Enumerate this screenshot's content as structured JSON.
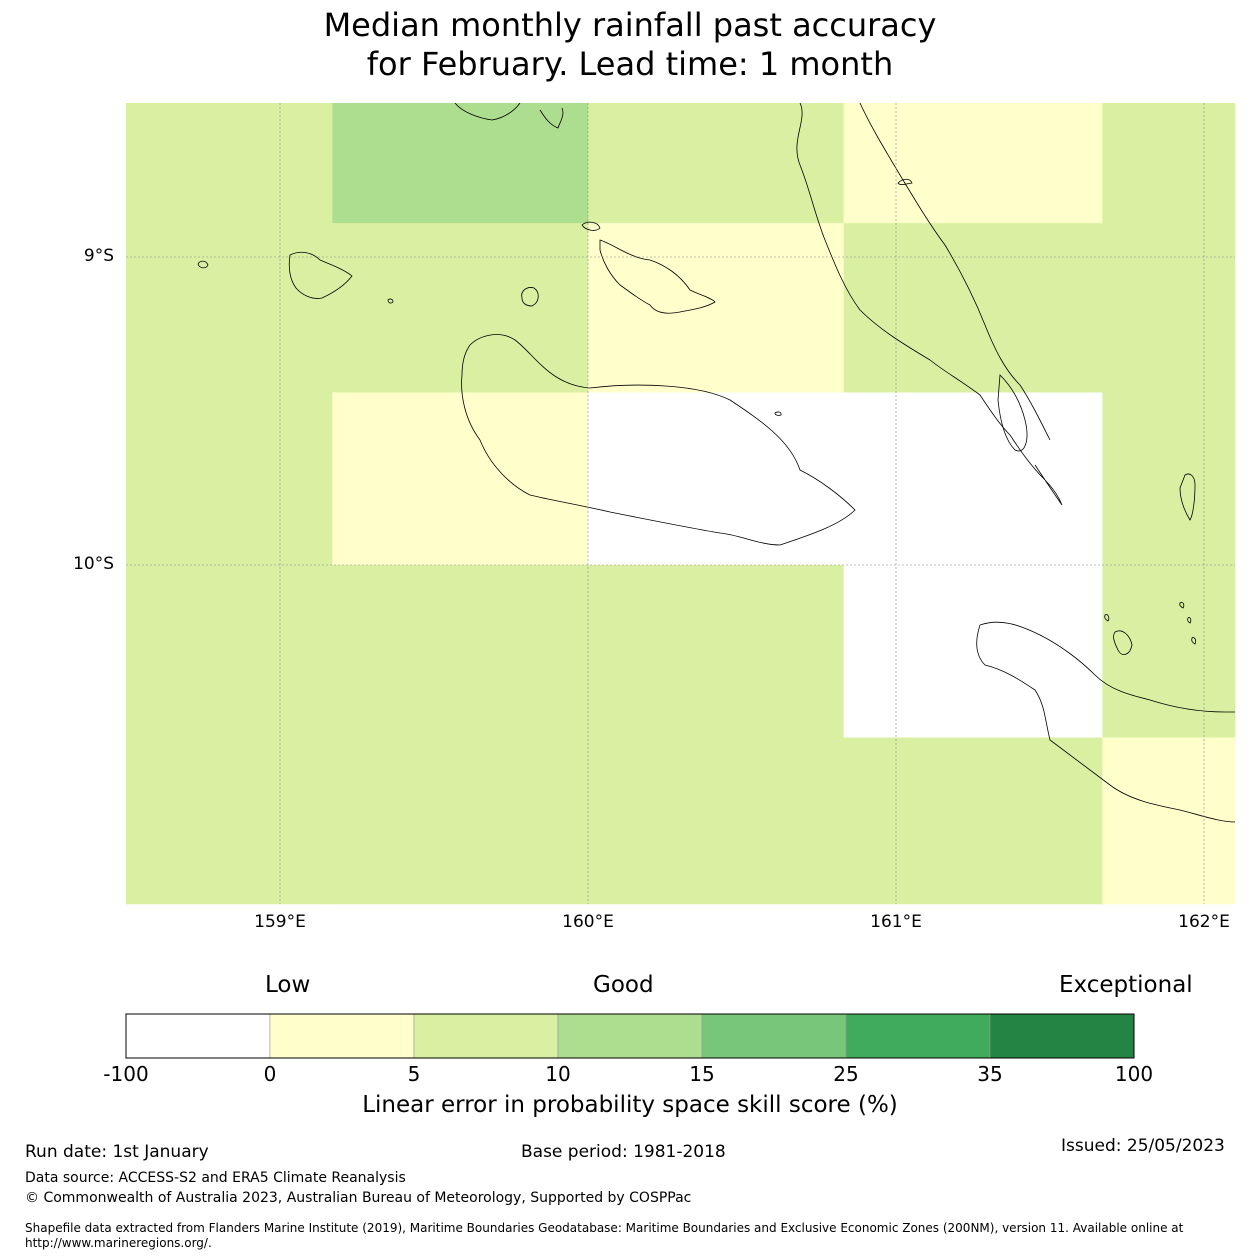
{
  "title": {
    "line1": "Median monthly rainfall past accuracy",
    "line2": "for February. Lead time: 1 month"
  },
  "map": {
    "lon_range": [
      158.5,
      162.1
    ],
    "lat_range": [
      -11.1,
      -8.5
    ],
    "lat_labels": [
      "9°S",
      "10°S"
    ],
    "lon_labels": [
      "159°E",
      "160°E",
      "161°E",
      "162°E"
    ],
    "gridlines": true,
    "grid_cells": [
      {
        "lon": [
          158.5,
          159.17
        ],
        "lat": [
          -8.5,
          -8.89
        ],
        "category": "5-10"
      },
      {
        "lon": [
          159.17,
          160.0
        ],
        "lat": [
          -8.5,
          -8.89
        ],
        "category": "10-15"
      },
      {
        "lon": [
          160.0,
          160.83
        ],
        "lat": [
          -8.5,
          -8.89
        ],
        "category": "5-10"
      },
      {
        "lon": [
          160.83,
          161.67
        ],
        "lat": [
          -8.5,
          -8.89
        ],
        "category": "0-5"
      },
      {
        "lon": [
          161.67,
          162.1
        ],
        "lat": [
          -8.5,
          -8.89
        ],
        "category": "5-10"
      },
      {
        "lon": [
          158.5,
          159.17
        ],
        "lat": [
          -8.89,
          -9.44
        ],
        "category": "5-10"
      },
      {
        "lon": [
          159.17,
          160.0
        ],
        "lat": [
          -8.89,
          -9.44
        ],
        "category": "5-10"
      },
      {
        "lon": [
          160.0,
          160.83
        ],
        "lat": [
          -8.89,
          -9.44
        ],
        "category": "0-5"
      },
      {
        "lon": [
          160.83,
          161.67
        ],
        "lat": [
          -8.89,
          -9.44
        ],
        "category": "5-10"
      },
      {
        "lon": [
          161.67,
          162.1
        ],
        "lat": [
          -8.89,
          -9.44
        ],
        "category": "5-10"
      },
      {
        "lon": [
          158.5,
          159.17
        ],
        "lat": [
          -9.44,
          -10.0
        ],
        "category": "5-10"
      },
      {
        "lon": [
          159.17,
          160.0
        ],
        "lat": [
          -9.44,
          -10.0
        ],
        "category": "0-5"
      },
      {
        "lon": [
          160.0,
          160.83
        ],
        "lat": [
          -9.44,
          -10.0
        ],
        "category": "-100-0"
      },
      {
        "lon": [
          160.83,
          161.67
        ],
        "lat": [
          -9.44,
          -10.0
        ],
        "category": "-100-0"
      },
      {
        "lon": [
          161.67,
          162.1
        ],
        "lat": [
          -9.44,
          -10.0
        ],
        "category": "5-10"
      },
      {
        "lon": [
          158.5,
          159.17
        ],
        "lat": [
          -10.0,
          -10.56
        ],
        "category": "5-10"
      },
      {
        "lon": [
          159.17,
          160.0
        ],
        "lat": [
          -10.0,
          -10.56
        ],
        "category": "5-10"
      },
      {
        "lon": [
          160.0,
          160.83
        ],
        "lat": [
          -10.0,
          -10.56
        ],
        "category": "5-10"
      },
      {
        "lon": [
          160.83,
          161.67
        ],
        "lat": [
          -10.0,
          -10.56
        ],
        "category": "-100-0"
      },
      {
        "lon": [
          161.67,
          162.1
        ],
        "lat": [
          -10.0,
          -10.56
        ],
        "category": "5-10"
      },
      {
        "lon": [
          158.5,
          159.17
        ],
        "lat": [
          -10.56,
          -11.1
        ],
        "category": "5-10"
      },
      {
        "lon": [
          159.17,
          160.0
        ],
        "lat": [
          -10.56,
          -11.1
        ],
        "category": "5-10"
      },
      {
        "lon": [
          160.0,
          160.83
        ],
        "lat": [
          -10.56,
          -11.1
        ],
        "category": "5-10"
      },
      {
        "lon": [
          160.83,
          161.67
        ],
        "lat": [
          -10.56,
          -11.1
        ],
        "category": "5-10"
      },
      {
        "lon": [
          161.67,
          162.1
        ],
        "lat": [
          -10.56,
          -11.1
        ],
        "category": "0-5"
      }
    ]
  },
  "colorbar": {
    "word_labels": {
      "low": "Low",
      "good": "Good",
      "exceptional": "Exceptional"
    },
    "bins": [
      {
        "from": "-100",
        "to": "0",
        "color": "#ffffff"
      },
      {
        "from": "0",
        "to": "5",
        "color": "#ffffcc"
      },
      {
        "from": "5",
        "to": "10",
        "color": "#d9f0a3"
      },
      {
        "from": "10",
        "to": "15",
        "color": "#addd8e"
      },
      {
        "from": "15",
        "to": "25",
        "color": "#78c679"
      },
      {
        "from": "25",
        "to": "35",
        "color": "#41ab5d"
      },
      {
        "from": "35",
        "to": "100",
        "color": "#238443"
      }
    ],
    "ticks": [
      "-100",
      "0",
      "5",
      "10",
      "15",
      "25",
      "35",
      "100"
    ],
    "label": "Linear error in probability space skill score (%)"
  },
  "footer": {
    "run_date": "Run date: 1st January",
    "base_period": "Base period: 1981-2018",
    "issued": "Issued: 25/05/2023",
    "data_source": "Data source: ACCESS-S2 and ERA5 Climate Reanalysis",
    "copyright": "© Commonwealth of Australia 2023, Australian Bureau of Meteorology, Supported by COSPPac",
    "shapefile_line1": "Shapefile data extracted from Flanders Marine Institute (2019), Maritime Boundaries Geodatabase: Maritime Boundaries and Exclusive Economic Zones (200NM), version 11. Available online at",
    "shapefile_line2": "http://www.marineregions.org/."
  }
}
